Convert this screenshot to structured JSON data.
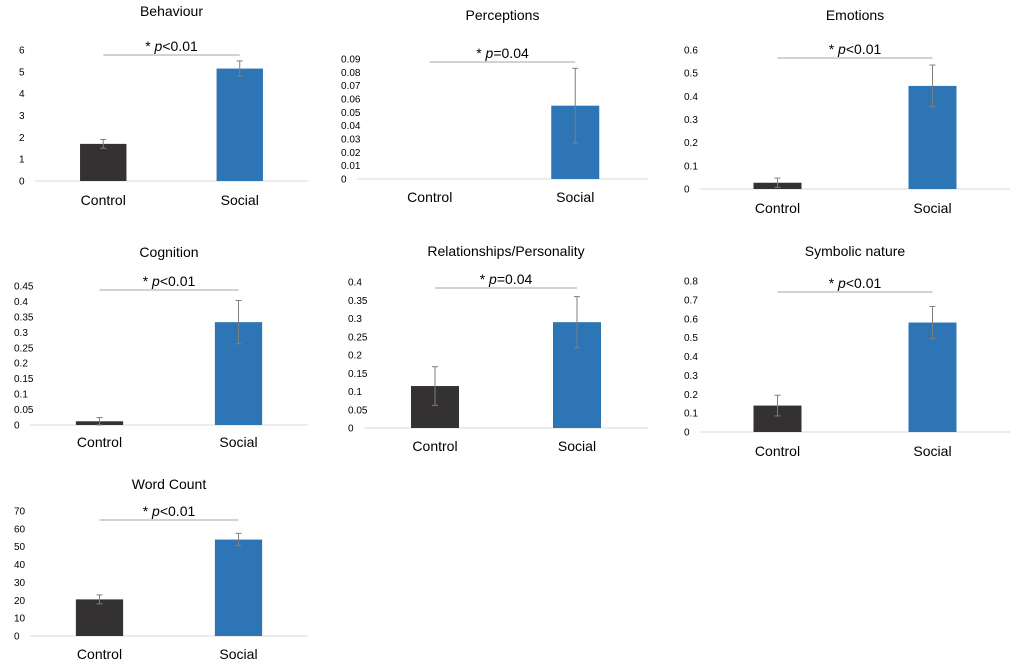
{
  "figure": {
    "colors": {
      "control": "#333132",
      "social": "#2e75b6",
      "axis": "#d9d9d9",
      "error": "#7f7f7f",
      "sig_line": "#a6a6a6",
      "text": "#000000"
    }
  },
  "chart_data": [
    {
      "type": "bar",
      "title": "Behaviour",
      "categories": [
        "Control",
        "Social"
      ],
      "values": [
        1.7,
        5.15
      ],
      "errors": [
        0.2,
        0.35
      ],
      "ylim": [
        0,
        6
      ],
      "yticks": [
        "0",
        "1",
        "2",
        "3",
        "4",
        "5",
        "6"
      ],
      "significance": {
        "star": "* ",
        "p": "p",
        "rest": "<0.01"
      }
    },
    {
      "type": "bar",
      "title": "Perceptions",
      "categories": [
        "Control",
        "Social"
      ],
      "values": [
        0,
        0.055
      ],
      "errors": [
        0,
        0.028
      ],
      "ylim": [
        0,
        0.09
      ],
      "yticks": [
        "0",
        "0.01",
        "0.02",
        "0.03",
        "0.04",
        "0.05",
        "0.06",
        "0.07",
        "0.08",
        "0.09"
      ],
      "significance": {
        "star": "* ",
        "p": "p",
        "rest": "=0.04"
      }
    },
    {
      "type": "bar",
      "title": "Emotions",
      "categories": [
        "Control",
        "Social"
      ],
      "values": [
        0.027,
        0.445
      ],
      "errors": [
        0.02,
        0.09
      ],
      "ylim": [
        0,
        0.6
      ],
      "yticks": [
        "0",
        "0.1",
        "0.2",
        "0.3",
        "0.4",
        "0.5",
        "0.6"
      ],
      "significance": {
        "star": "* ",
        "p": "p",
        "rest": "<0.01"
      }
    },
    {
      "type": "bar",
      "title": "Cognition",
      "categories": [
        "Control",
        "Social"
      ],
      "values": [
        0.012,
        0.333
      ],
      "errors": [
        0.012,
        0.07
      ],
      "ylim": [
        0,
        0.45
      ],
      "yticks": [
        "0",
        "0.05",
        "0.1",
        "0.15",
        "0.2",
        "0.25",
        "0.3",
        "0.35",
        "0.4",
        "0.45"
      ],
      "significance": {
        "star": "* ",
        "p": "p",
        "rest": "<0.01"
      }
    },
    {
      "type": "bar",
      "title": "Relationships/Personality",
      "categories": [
        "Control",
        "Social"
      ],
      "values": [
        0.115,
        0.29
      ],
      "errors": [
        0.053,
        0.07
      ],
      "ylim": [
        0,
        0.4
      ],
      "yticks": [
        "0",
        "0.05",
        "0.1",
        "0.15",
        "0.2",
        "0.25",
        "0.3",
        "0.35",
        "0.4"
      ],
      "significance": {
        "star": "* ",
        "p": "p",
        "rest": "=0.04"
      }
    },
    {
      "type": "bar",
      "title": "Symbolic nature",
      "categories": [
        "Control",
        "Social"
      ],
      "values": [
        0.14,
        0.58
      ],
      "errors": [
        0.055,
        0.085
      ],
      "ylim": [
        0,
        0.8
      ],
      "yticks": [
        "0",
        "0.1",
        "0.2",
        "0.3",
        "0.4",
        "0.5",
        "0.6",
        "0.7",
        "0.8"
      ],
      "significance": {
        "star": "* ",
        "p": "p",
        "rest": "<0.01"
      }
    },
    {
      "type": "bar",
      "title": "Word Count",
      "categories": [
        "Control",
        "Social"
      ],
      "values": [
        20.5,
        54
      ],
      "errors": [
        2.5,
        3.5
      ],
      "ylim": [
        0,
        70
      ],
      "yticks": [
        "0",
        "10",
        "20",
        "30",
        "40",
        "50",
        "60",
        "70"
      ],
      "significance": {
        "star": "* ",
        "p": "p",
        "rest": "<0.01"
      }
    }
  ]
}
